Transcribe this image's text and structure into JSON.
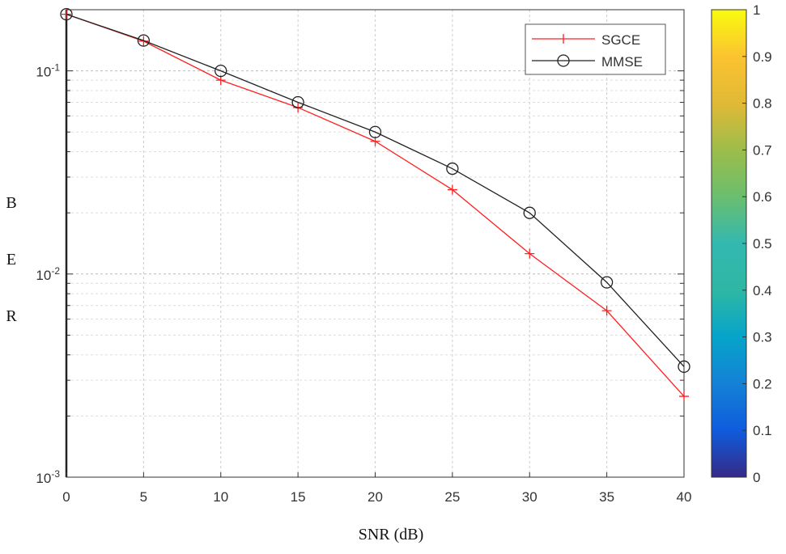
{
  "chart_data": {
    "type": "line",
    "xlabel": "SNR  (dB)",
    "ylabel_letters": [
      "B",
      "E",
      "R"
    ],
    "x": [
      0,
      5,
      10,
      15,
      20,
      25,
      30,
      35,
      40
    ],
    "xlim": [
      0,
      40
    ],
    "xticks": [
      "0",
      "5",
      "10",
      "15",
      "20",
      "25",
      "30",
      "35",
      "40"
    ],
    "ylim": [
      0.001,
      0.2
    ],
    "yscale": "log",
    "yticks": [
      {
        "base": "10",
        "exp": "-1"
      },
      {
        "base": "10",
        "exp": "-2"
      },
      {
        "base": "10",
        "exp": "-3"
      }
    ],
    "grid": true,
    "legend_placement": "top-right",
    "series": [
      {
        "name": "SGCE",
        "color": "#ff2020",
        "marker": "plus",
        "values": [
          0.19,
          0.14,
          0.09,
          0.066,
          0.045,
          0.026,
          0.0126,
          0.0066,
          0.0025
        ]
      },
      {
        "name": "MMSE",
        "color": "#222222",
        "marker": "circle",
        "values": [
          0.19,
          0.141,
          0.1,
          0.07,
          0.05,
          0.033,
          0.02,
          0.0091,
          0.0035
        ]
      }
    ],
    "colorbar": {
      "colormap": "parula",
      "range": [
        0,
        1
      ],
      "ticks": [
        "0",
        "0.1",
        "0.2",
        "0.3",
        "0.4",
        "0.5",
        "0.6",
        "0.7",
        "0.8",
        "0.9",
        "1"
      ]
    }
  }
}
